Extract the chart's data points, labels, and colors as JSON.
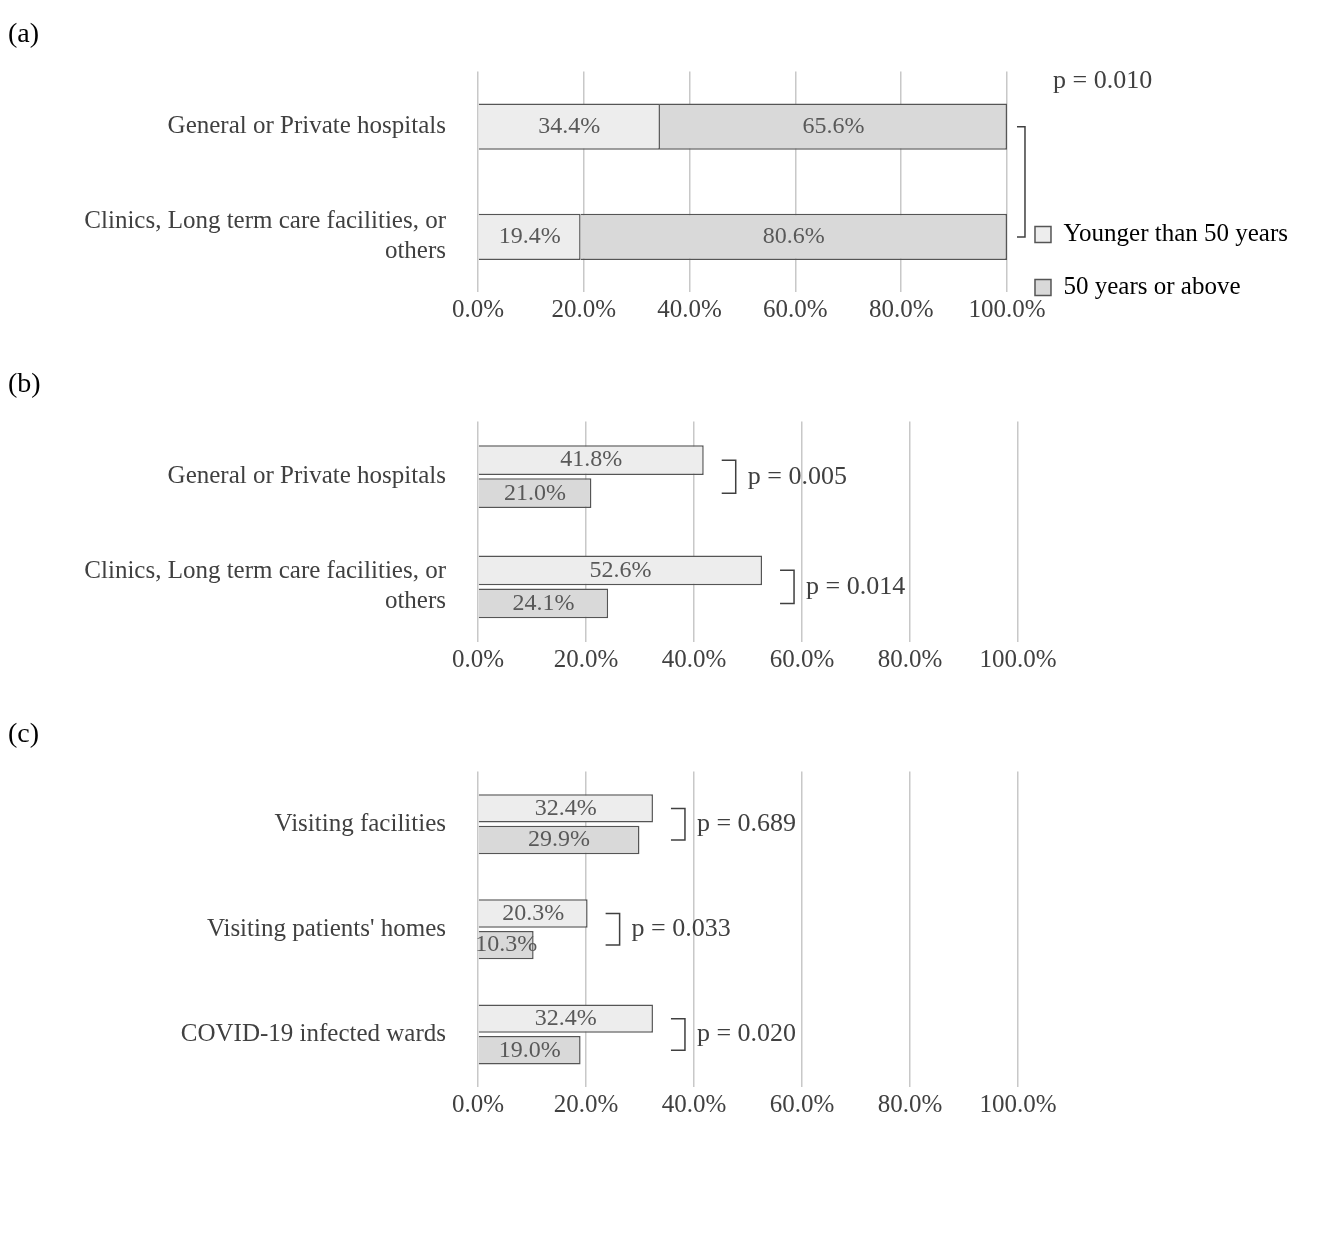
{
  "chart_data": [
    {
      "type": "bar",
      "title": "(a)",
      "orientation": "horizontal",
      "stacked": true,
      "categories": [
        "General or Private hospitals",
        "Clinics, Long term care facilities, or others"
      ],
      "series": [
        {
          "name": "Younger than 50 years",
          "color": "#ededed",
          "values": [
            34.4,
            19.4
          ],
          "value_labels": [
            "34.4%",
            "19.4%"
          ]
        },
        {
          "name": "50 years or above",
          "color": "#d9d9d9",
          "values": [
            65.6,
            80.6
          ],
          "value_labels": [
            "65.6%",
            "80.6%"
          ]
        }
      ],
      "xlim": [
        0,
        100
      ],
      "xticks": [
        {
          "value": 0,
          "label": "0.0%"
        },
        {
          "value": 20,
          "label": "20.0%"
        },
        {
          "value": 40,
          "label": "40.0%"
        },
        {
          "value": 60,
          "label": "60.0%"
        },
        {
          "value": 80,
          "label": "80.0%"
        },
        {
          "value": 100,
          "label": "100.0%"
        }
      ],
      "grid": "x",
      "legend": "right",
      "annotations": [
        "p = 0.010"
      ]
    },
    {
      "type": "bar",
      "title": "(b)",
      "orientation": "horizontal",
      "categories": [
        "General or Private hospitals",
        "Clinics, Long term care facilities, or others"
      ],
      "series": [
        {
          "color": "#ededed",
          "values": [
            41.8,
            52.6
          ],
          "value_labels": [
            "41.8%",
            "52.6%"
          ]
        },
        {
          "color": "#d9d9d9",
          "values": [
            21.0,
            24.1
          ],
          "value_labels": [
            "21.0%",
            "24.1%"
          ]
        }
      ],
      "xlim": [
        0,
        100
      ],
      "xticks": [
        {
          "value": 0,
          "label": "0.0%"
        },
        {
          "value": 20,
          "label": "20.0%"
        },
        {
          "value": 40,
          "label": "40.0%"
        },
        {
          "value": 60,
          "label": "60.0%"
        },
        {
          "value": 80,
          "label": "80.0%"
        },
        {
          "value": 100,
          "label": "100.0%"
        }
      ],
      "grid": "x",
      "legend": false,
      "annotations": [
        "p = 0.005",
        "p = 0.014"
      ]
    },
    {
      "type": "bar",
      "title": "(c)",
      "orientation": "horizontal",
      "categories": [
        "Visiting facilities",
        "Visiting patients' homes",
        "COVID-19 infected wards"
      ],
      "series": [
        {
          "color": "#ededed",
          "values": [
            32.4,
            20.3,
            32.4
          ],
          "value_labels": [
            "32.4%",
            "20.3%",
            "32.4%"
          ]
        },
        {
          "color": "#d9d9d9",
          "values": [
            29.9,
            10.3,
            19.0
          ],
          "value_labels": [
            "29.9%",
            "10.3%",
            "19.0%"
          ]
        }
      ],
      "xlim": [
        0,
        100
      ],
      "xticks": [
        {
          "value": 0,
          "label": "0.0%"
        },
        {
          "value": 20,
          "label": "20.0%"
        },
        {
          "value": 40,
          "label": "40.0%"
        },
        {
          "value": 60,
          "label": "60.0%"
        },
        {
          "value": 80,
          "label": "80.0%"
        },
        {
          "value": 100,
          "label": "100.0%"
        }
      ],
      "grid": "x",
      "legend": false,
      "annotations": [
        "p = 0.689",
        "p = 0.033",
        "p = 0.020"
      ]
    }
  ]
}
